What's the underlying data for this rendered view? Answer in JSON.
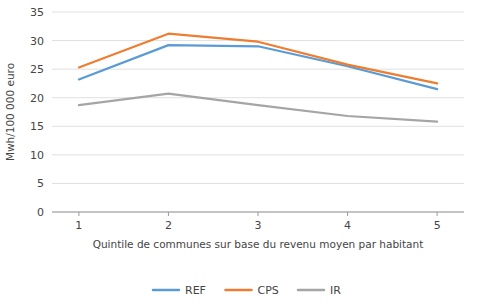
{
  "chart_data": {
    "type": "line",
    "x": [
      1,
      2,
      3,
      4,
      5
    ],
    "series": [
      {
        "name": "REF",
        "color": "#5B9BD5",
        "values": [
          23.2,
          29.2,
          29.0,
          25.5,
          21.5
        ]
      },
      {
        "name": "CPS",
        "color": "#ED7D31",
        "values": [
          25.3,
          31.2,
          29.8,
          25.8,
          22.5
        ]
      },
      {
        "name": "IR",
        "color": "#A5A5A5",
        "values": [
          18.7,
          20.7,
          18.7,
          16.8,
          15.8
        ]
      }
    ],
    "xlabel": "Quintile de communes sur base du revenu moyen par habitant",
    "ylabel": "Mwh/100 000 euro",
    "xlim": [
      0.7,
      5.3
    ],
    "xticks": [
      1,
      2,
      3,
      4,
      5
    ],
    "ylim": [
      0,
      35
    ],
    "yticks": [
      0,
      5,
      10,
      15,
      20,
      25,
      30,
      35
    ],
    "grid": true,
    "legend": "bottom"
  }
}
